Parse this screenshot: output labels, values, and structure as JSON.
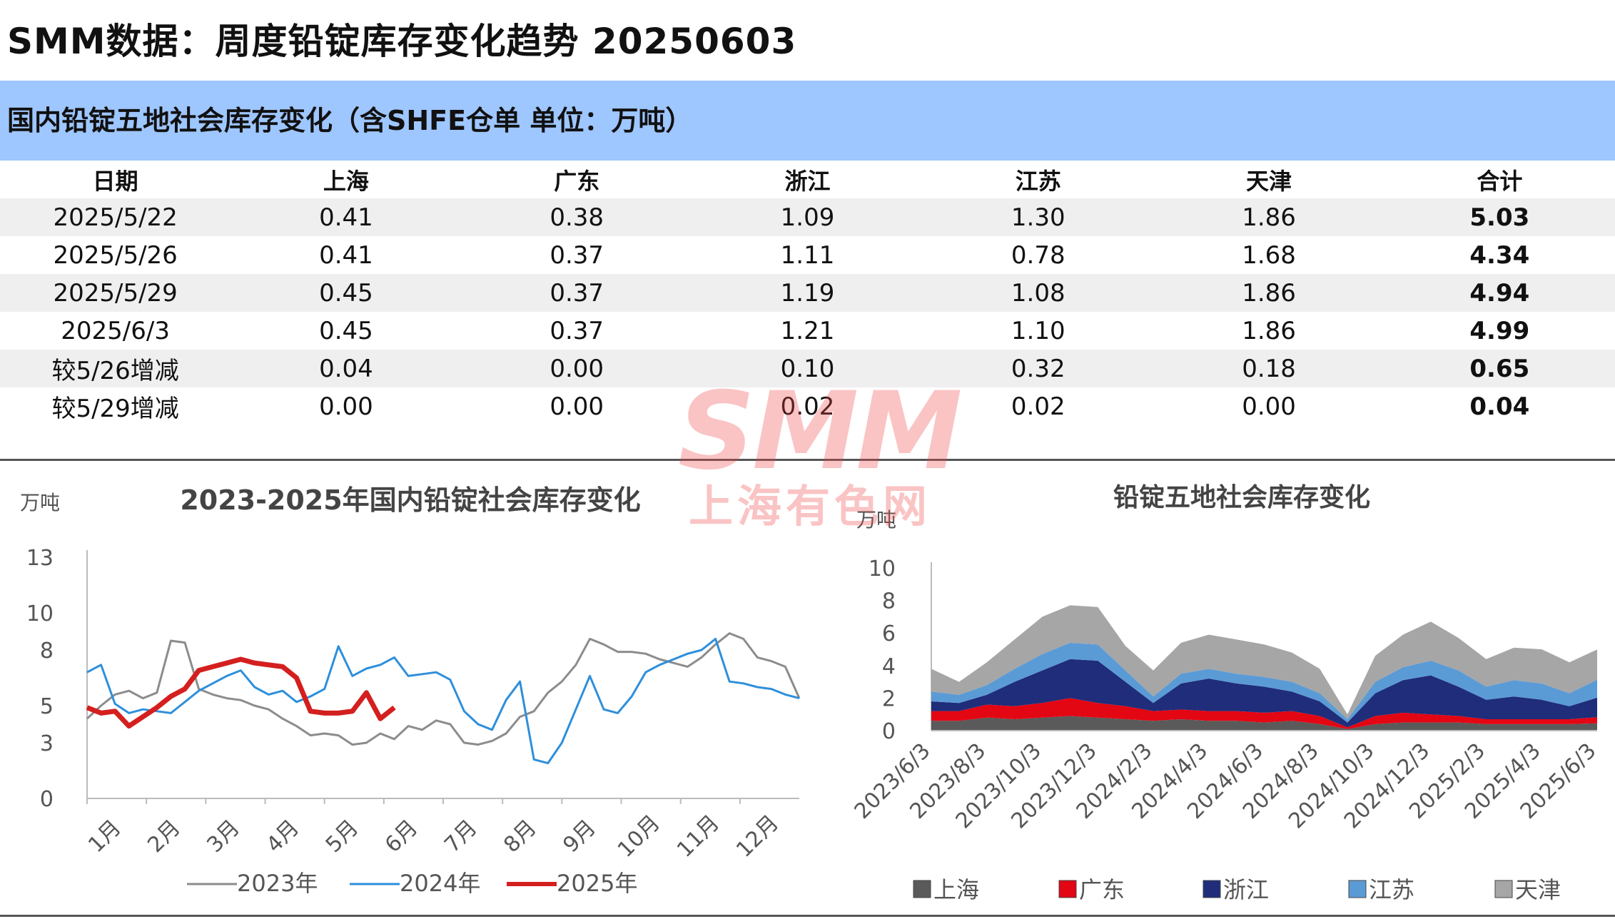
{
  "page": {
    "title": "SMM数据：周度铅锭库存变化趋势 20250603"
  },
  "table": {
    "header": "国内铅锭五地社会库存变化（含SHFE仓单 单位：万吨）",
    "columns": [
      "日期",
      "上海",
      "广东",
      "浙江",
      "江苏",
      "天津",
      "合计"
    ],
    "rows": [
      [
        "2025/5/22",
        "0.41",
        "0.38",
        "1.09",
        "1.30",
        "1.86",
        "5.03"
      ],
      [
        "2025/5/26",
        "0.41",
        "0.37",
        "1.11",
        "0.78",
        "1.68",
        "4.34"
      ],
      [
        "2025/5/29",
        "0.45",
        "0.37",
        "1.19",
        "1.08",
        "1.86",
        "4.94"
      ],
      [
        "2025/6/3",
        "0.45",
        "0.37",
        "1.21",
        "1.10",
        "1.86",
        "4.99"
      ],
      [
        "较5/26增减",
        "0.04",
        "0.00",
        "0.10",
        "0.32",
        "0.18",
        "0.65"
      ],
      [
        "较5/29增减",
        "0.00",
        "0.00",
        "0.02",
        "0.02",
        "0.00",
        "0.04"
      ]
    ]
  },
  "watermark": {
    "logo": "SMM",
    "text": "上海有色网"
  },
  "chart_data": [
    {
      "type": "line",
      "title": "2023-2025年国内铅锭社会库存变化",
      "ylabel": "万吨",
      "ylim": [
        0,
        13
      ],
      "y_ticks": [
        "0",
        "3",
        "5",
        "8",
        "10",
        "13"
      ],
      "x_ticks": [
        "1月",
        "2月",
        "3月",
        "4月",
        "5月",
        "6月",
        "7月",
        "8月",
        "9月",
        "10月",
        "11月",
        "12月"
      ],
      "x_unit": "week of year",
      "series": [
        {
          "name": "2023年",
          "color": "#8c8c8c",
          "x": [
            1,
            2,
            3,
            4,
            5,
            6,
            7,
            8,
            9,
            10,
            11,
            12,
            13,
            14,
            15,
            16,
            17,
            18,
            19,
            20,
            21,
            22,
            23,
            24,
            25,
            26,
            27,
            28,
            29,
            30,
            31,
            32,
            33,
            34,
            35,
            36,
            37,
            38,
            39,
            40,
            41,
            42,
            43,
            44,
            45,
            46,
            47,
            48,
            49,
            50,
            51,
            52
          ],
          "values": [
            4.3,
            5.0,
            5.6,
            5.8,
            5.4,
            5.7,
            8.5,
            8.4,
            5.9,
            5.6,
            5.4,
            5.3,
            5.0,
            4.8,
            4.3,
            3.9,
            3.4,
            3.5,
            3.4,
            2.9,
            3.0,
            3.5,
            3.2,
            3.9,
            3.7,
            4.2,
            4.0,
            3.0,
            2.9,
            3.1,
            3.5,
            4.4,
            4.7,
            5.7,
            6.3,
            7.2,
            8.6,
            8.3,
            7.9,
            7.9,
            7.8,
            7.5,
            7.3,
            7.1,
            7.6,
            8.3,
            8.9,
            8.6,
            7.6,
            7.4,
            7.1,
            5.4
          ]
        },
        {
          "name": "2024年",
          "color": "#2e8fdb",
          "x": [
            1,
            2,
            3,
            4,
            5,
            6,
            7,
            8,
            9,
            10,
            11,
            12,
            13,
            14,
            15,
            16,
            17,
            18,
            19,
            20,
            21,
            22,
            23,
            24,
            25,
            26,
            27,
            28,
            29,
            30,
            31,
            32,
            33,
            34,
            35,
            36,
            37,
            38,
            39,
            40,
            41,
            42,
            43,
            44,
            45,
            46,
            47,
            48,
            49,
            50,
            51,
            52
          ],
          "values": [
            6.8,
            7.2,
            5.1,
            4.6,
            4.8,
            4.7,
            4.6,
            5.2,
            5.8,
            6.2,
            6.6,
            6.9,
            6.0,
            5.6,
            5.8,
            5.2,
            5.5,
            5.9,
            8.2,
            6.6,
            7.0,
            7.2,
            7.6,
            6.6,
            6.7,
            6.8,
            6.4,
            4.7,
            4.0,
            3.7,
            5.3,
            6.3,
            2.1,
            1.9,
            3.0,
            4.8,
            6.6,
            4.8,
            4.6,
            5.5,
            6.8,
            7.2,
            7.5,
            7.8,
            8.0,
            8.6,
            6.3,
            6.2,
            6.0,
            5.9,
            5.6,
            5.4
          ]
        },
        {
          "name": "2025年",
          "color": "#d41f1f",
          "x": [
            1,
            2,
            3,
            4,
            5,
            6,
            7,
            8,
            9,
            10,
            11,
            12,
            13,
            14,
            15,
            16,
            17,
            18,
            19,
            20,
            21,
            22,
            23
          ],
          "values": [
            4.9,
            4.6,
            4.7,
            3.9,
            4.4,
            4.9,
            5.5,
            5.9,
            6.9,
            7.1,
            7.3,
            7.5,
            7.3,
            7.2,
            7.1,
            6.5,
            4.7,
            4.6,
            4.6,
            4.7,
            5.7,
            4.3,
            4.9
          ]
        }
      ]
    },
    {
      "type": "area",
      "stacked": true,
      "title": "铅锭五地社会库存变化",
      "ylabel": "万吨",
      "ylim": [
        0,
        10
      ],
      "y_ticks": [
        "0",
        "2",
        "4",
        "6",
        "8",
        "10"
      ],
      "x_ticks": [
        "2023/6/3",
        "2023/8/3",
        "2023/10/3",
        "2023/12/3",
        "2024/2/3",
        "2024/4/3",
        "2024/6/3",
        "2024/8/3",
        "2024/10/3",
        "2024/12/3",
        "2025/2/3",
        "2025/4/3",
        "2025/6/3"
      ],
      "x_months": [
        0,
        1,
        2,
        3,
        4,
        5,
        6,
        7,
        8,
        9,
        10,
        11,
        12,
        13,
        14,
        15,
        16,
        17,
        18,
        19,
        20,
        21,
        22,
        23,
        24
      ],
      "series": [
        {
          "name": "上海",
          "color": "#5a5a5a",
          "values": [
            0.6,
            0.6,
            0.8,
            0.7,
            0.8,
            0.9,
            0.8,
            0.7,
            0.6,
            0.7,
            0.6,
            0.6,
            0.5,
            0.6,
            0.4,
            0.1,
            0.4,
            0.5,
            0.5,
            0.5,
            0.4,
            0.4,
            0.4,
            0.4,
            0.45
          ]
        },
        {
          "name": "广东",
          "color": "#e30613",
          "values": [
            0.6,
            0.6,
            0.8,
            0.8,
            0.9,
            1.1,
            0.9,
            0.8,
            0.6,
            0.6,
            0.6,
            0.6,
            0.6,
            0.6,
            0.5,
            0.1,
            0.5,
            0.6,
            0.5,
            0.4,
            0.3,
            0.3,
            0.3,
            0.3,
            0.37
          ]
        },
        {
          "name": "浙江",
          "color": "#1f2d7a",
          "values": [
            0.6,
            0.5,
            0.6,
            1.5,
            2.0,
            2.4,
            2.6,
            1.5,
            0.5,
            1.6,
            2.0,
            1.7,
            1.6,
            1.2,
            0.9,
            0.3,
            1.4,
            2.0,
            2.4,
            1.8,
            1.2,
            1.4,
            1.2,
            0.8,
            1.21
          ]
        },
        {
          "name": "江苏",
          "color": "#5b9bd5",
          "values": [
            0.6,
            0.5,
            0.6,
            0.8,
            1.0,
            1.0,
            1.0,
            0.7,
            0.4,
            0.6,
            0.6,
            0.6,
            0.6,
            0.6,
            0.5,
            0.2,
            0.7,
            0.8,
            0.9,
            1.0,
            0.8,
            1.0,
            1.0,
            0.8,
            1.1
          ]
        },
        {
          "name": "天津",
          "color": "#a6a6a6",
          "values": [
            1.4,
            0.8,
            1.4,
            1.8,
            2.3,
            2.3,
            2.3,
            1.5,
            1.6,
            1.9,
            2.1,
            2.1,
            2.0,
            1.8,
            1.5,
            0.3,
            1.6,
            2.0,
            2.4,
            2.0,
            1.7,
            2.0,
            2.1,
            1.9,
            1.86
          ]
        }
      ]
    }
  ]
}
